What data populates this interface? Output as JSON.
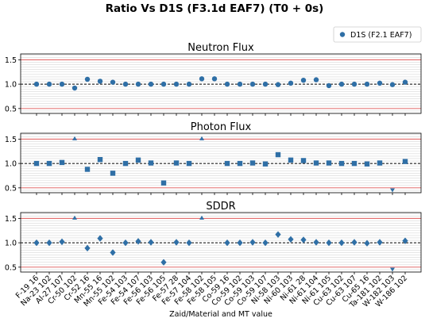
{
  "figure": {
    "title": "Ratio Vs D1S (F3.1d EAF7) (T0 + 0s)",
    "xlabel": "Zaid/Material and MT value",
    "legend_label": "D1S (F2.1 EAF7)"
  },
  "colors": {
    "marker": "#2f6fa6",
    "red_line": "#e05a5a",
    "grid": "#d8d8d8"
  },
  "chart_data": [
    {
      "type": "scatter",
      "title": "Neutron Flux",
      "marker": "circle",
      "ylim": [
        0.4,
        1.62
      ],
      "yticks": [
        "0.5",
        "1.0",
        "1.5"
      ],
      "red_lines": [
        0.5,
        1.5
      ],
      "ref_line": 1.0,
      "categories": [
        "F-19 16",
        "Na-23 102",
        "Al-27 107",
        "Cr-50 102",
        "Cr-52 16",
        "Mn-55 16",
        "Mn-55 102",
        "Fe-54 103",
        "Fe-54 107",
        "Fe-56 103",
        "Fe-56 105",
        "Fe-57 28",
        "Fe-57 104",
        "Fe-58 102",
        "Fe-58 105",
        "Co-59 16",
        "Co-59 102",
        "Co-59 103",
        "Co-59 107",
        "Ni-58 103",
        "Ni-60 103",
        "Ni-61 28",
        "Ni-61 104",
        "Ni-61 105",
        "Cu-63 102",
        "Cu-63 107",
        "Cu-65 16",
        "Ta-181 102",
        "W-182 103",
        "W-186 102"
      ],
      "values": [
        1.0,
        1.0,
        1.0,
        0.92,
        1.1,
        1.06,
        1.04,
        1.0,
        1.0,
        1.0,
        1.0,
        1.0,
        1.0,
        1.11,
        1.11,
        1.0,
        1.0,
        1.0,
        1.0,
        0.99,
        1.02,
        1.08,
        1.09,
        0.97,
        1.0,
        1.0,
        1.0,
        1.02,
        0.99,
        1.04
      ]
    },
    {
      "type": "scatter",
      "title": "Photon Flux",
      "marker": "square",
      "ylim": [
        0.4,
        1.62
      ],
      "yticks": [
        "0.5",
        "1.0",
        "1.5"
      ],
      "red_lines": [
        0.5,
        1.5
      ],
      "ref_line": 1.0,
      "categories": [
        "F-19 16",
        "Na-23 102",
        "Al-27 107",
        "Cr-50 102",
        "Cr-52 16",
        "Mn-55 16",
        "Mn-55 102",
        "Fe-54 103",
        "Fe-54 107",
        "Fe-56 103",
        "Fe-56 105",
        "Fe-57 28",
        "Fe-57 104",
        "Fe-58 102",
        "Fe-58 105",
        "Co-59 16",
        "Co-59 102",
        "Co-59 103",
        "Co-59 107",
        "Ni-58 103",
        "Ni-60 103",
        "Ni-61 28",
        "Ni-61 104",
        "Ni-61 105",
        "Cu-63 102",
        "Cu-63 107",
        "Cu-65 16",
        "Ta-181 102",
        "W-182 103",
        "W-186 102"
      ],
      "values": [
        1.0,
        1.0,
        1.02,
        null,
        0.88,
        1.08,
        0.8,
        1.0,
        1.07,
        1.01,
        0.6,
        1.01,
        1.0,
        null,
        null,
        1.0,
        1.0,
        1.01,
        0.99,
        1.18,
        1.07,
        1.06,
        1.01,
        1.01,
        1.0,
        1.0,
        0.99,
        1.01,
        null,
        1.04
      ],
      "out_of_range": [
        {
          "index": 3,
          "dir": "up"
        },
        {
          "index": 13,
          "dir": "up"
        },
        {
          "index": 28,
          "dir": "down"
        }
      ]
    },
    {
      "type": "scatter",
      "title": "SDDR",
      "marker": "diamond",
      "ylim": [
        0.4,
        1.62
      ],
      "yticks": [
        "0.5",
        "1.0",
        "1.5"
      ],
      "red_lines": [
        0.5,
        1.5
      ],
      "ref_line": 1.0,
      "categories": [
        "F-19 16",
        "Na-23 102",
        "Al-27 107",
        "Cr-50 102",
        "Cr-52 16",
        "Mn-55 16",
        "Mn-55 102",
        "Fe-54 103",
        "Fe-54 107",
        "Fe-56 103",
        "Fe-56 105",
        "Fe-57 28",
        "Fe-57 104",
        "Fe-58 102",
        "Fe-58 105",
        "Co-59 16",
        "Co-59 102",
        "Co-59 103",
        "Co-59 107",
        "Ni-58 103",
        "Ni-60 103",
        "Ni-61 28",
        "Ni-61 104",
        "Ni-61 105",
        "Cu-63 102",
        "Cu-63 107",
        "Cu-65 16",
        "Ta-181 102",
        "W-182 103",
        "W-186 102"
      ],
      "values": [
        1.0,
        1.0,
        1.02,
        null,
        0.89,
        1.09,
        0.8,
        1.0,
        1.03,
        1.01,
        0.6,
        1.01,
        1.0,
        null,
        null,
        1.0,
        1.0,
        1.01,
        1.0,
        1.17,
        1.07,
        1.06,
        1.01,
        1.0,
        1.0,
        1.01,
        0.99,
        1.01,
        null,
        1.04
      ],
      "out_of_range": [
        {
          "index": 3,
          "dir": "up"
        },
        {
          "index": 13,
          "dir": "up"
        },
        {
          "index": 28,
          "dir": "down"
        }
      ]
    }
  ]
}
